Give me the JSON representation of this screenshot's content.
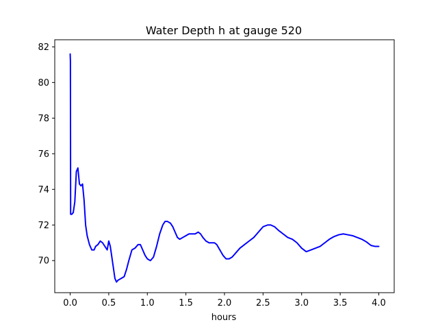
{
  "chart_data": {
    "type": "line",
    "title": "Water Depth h at gauge 520",
    "xlabel": "hours",
    "ylabel": "",
    "xlim": [
      -0.2,
      4.2
    ],
    "ylim": [
      68.2,
      82.4
    ],
    "xticks": [
      0.0,
      0.5,
      1.0,
      1.5,
      2.0,
      2.5,
      3.0,
      3.5,
      4.0
    ],
    "xtick_labels": [
      "0.0",
      "0.5",
      "1.0",
      "1.5",
      "2.0",
      "2.5",
      "3.0",
      "3.5",
      "4.0"
    ],
    "yticks": [
      70,
      72,
      74,
      76,
      78,
      80,
      82
    ],
    "ytick_labels": [
      "70",
      "72",
      "74",
      "76",
      "78",
      "80",
      "82"
    ],
    "grid": false,
    "series": [
      {
        "color": "#0000ff",
        "x": [
          0.0,
          0.003,
          0.006,
          0.008,
          0.01,
          0.02,
          0.04,
          0.06,
          0.08,
          0.1,
          0.12,
          0.14,
          0.16,
          0.18,
          0.2,
          0.22,
          0.25,
          0.28,
          0.31,
          0.33,
          0.36,
          0.39,
          0.42,
          0.45,
          0.48,
          0.5,
          0.52,
          0.54,
          0.56,
          0.58,
          0.6,
          0.62,
          0.66,
          0.7,
          0.73,
          0.76,
          0.8,
          0.84,
          0.88,
          0.91,
          0.94,
          0.97,
          1.0,
          1.04,
          1.08,
          1.12,
          1.16,
          1.2,
          1.23,
          1.26,
          1.3,
          1.33,
          1.36,
          1.39,
          1.42,
          1.46,
          1.5,
          1.54,
          1.58,
          1.62,
          1.66,
          1.69,
          1.72,
          1.76,
          1.8,
          1.84,
          1.87,
          1.9,
          1.94,
          1.98,
          2.02,
          2.06,
          2.1,
          2.14,
          2.2,
          2.26,
          2.32,
          2.38,
          2.44,
          2.5,
          2.56,
          2.6,
          2.65,
          2.7,
          2.76,
          2.82,
          2.88,
          2.94,
          3.0,
          3.06,
          3.12,
          3.18,
          3.24,
          3.3,
          3.36,
          3.42,
          3.48,
          3.54,
          3.6,
          3.66,
          3.72,
          3.78,
          3.84,
          3.9,
          3.95,
          4.0
        ],
        "y": [
          81.6,
          81.2,
          72.6,
          72.6,
          72.6,
          72.6,
          72.7,
          73.3,
          75.0,
          75.2,
          74.3,
          74.2,
          74.3,
          73.4,
          72.0,
          71.4,
          70.9,
          70.6,
          70.6,
          70.8,
          70.9,
          71.1,
          71.0,
          70.8,
          70.6,
          71.1,
          70.8,
          70.2,
          69.6,
          69.0,
          68.8,
          68.9,
          69.0,
          69.1,
          69.5,
          70.0,
          70.6,
          70.7,
          70.9,
          70.9,
          70.6,
          70.3,
          70.1,
          70.0,
          70.2,
          70.8,
          71.5,
          72.0,
          72.2,
          72.2,
          72.1,
          71.9,
          71.6,
          71.3,
          71.2,
          71.3,
          71.4,
          71.5,
          71.5,
          71.5,
          71.6,
          71.5,
          71.3,
          71.1,
          71.0,
          71.0,
          71.0,
          70.9,
          70.6,
          70.3,
          70.1,
          70.1,
          70.2,
          70.4,
          70.7,
          70.9,
          71.1,
          71.3,
          71.6,
          71.9,
          72.0,
          72.0,
          71.9,
          71.7,
          71.5,
          71.3,
          71.2,
          71.0,
          70.7,
          70.5,
          70.6,
          70.7,
          70.8,
          71.0,
          71.2,
          71.35,
          71.45,
          71.5,
          71.45,
          71.4,
          71.3,
          71.2,
          71.05,
          70.85,
          70.8,
          70.8
        ]
      }
    ]
  }
}
